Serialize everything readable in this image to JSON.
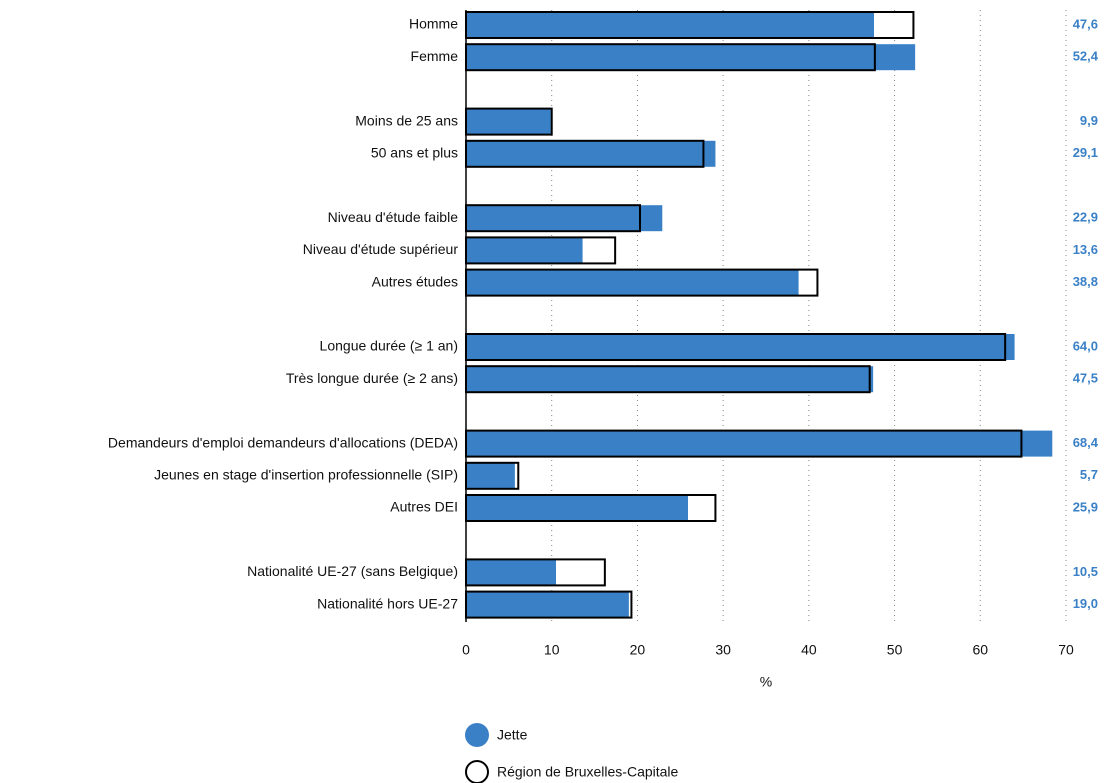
{
  "chart_data": {
    "type": "bar",
    "orientation": "horizontal",
    "categories": [
      "Homme",
      "Femme",
      null,
      "Moins de 25 ans",
      "50 ans et plus",
      null,
      "Niveau d'étude faible",
      "Niveau d'étude supérieur",
      "Autres études",
      null,
      "Longue durée (≥ 1 an)",
      "Très longue durée (≥ 2 ans)",
      null,
      "Demandeurs d'emploi demandeurs d'allocations (DEDA)",
      "Jeunes en stage d'insertion professionnelle (SIP)",
      "Autres DEI",
      null,
      "Nationalité UE-27 (sans Belgique)",
      "Nationalité hors UE-27"
    ],
    "series": [
      {
        "name": "Jette",
        "color": "#3a80c6",
        "values": [
          47.6,
          52.4,
          null,
          9.9,
          29.1,
          null,
          22.9,
          13.6,
          38.8,
          null,
          64.0,
          47.5,
          null,
          68.4,
          5.7,
          25.9,
          null,
          10.5,
          19.0
        ],
        "value_labels": [
          "47,6",
          "52,4",
          null,
          "9,9",
          "29,1",
          null,
          "22,9",
          "13,6",
          "38,8",
          null,
          "64,0",
          "47,5",
          null,
          "68,4",
          "5,7",
          "25,9",
          null,
          "10,5",
          "19,0"
        ]
      },
      {
        "name": "Région de Bruxelles-Capitale",
        "color": "#ffffff",
        "values": [
          52.2,
          47.7,
          null,
          10.0,
          27.7,
          null,
          20.3,
          17.4,
          41.0,
          null,
          62.9,
          47.1,
          null,
          64.8,
          6.1,
          29.1,
          null,
          16.2,
          19.3
        ]
      }
    ],
    "xlabel": "%",
    "xlim": [
      0,
      70
    ],
    "xticks": [
      0,
      10,
      20,
      30,
      40,
      50,
      60,
      70
    ],
    "grid": true
  }
}
